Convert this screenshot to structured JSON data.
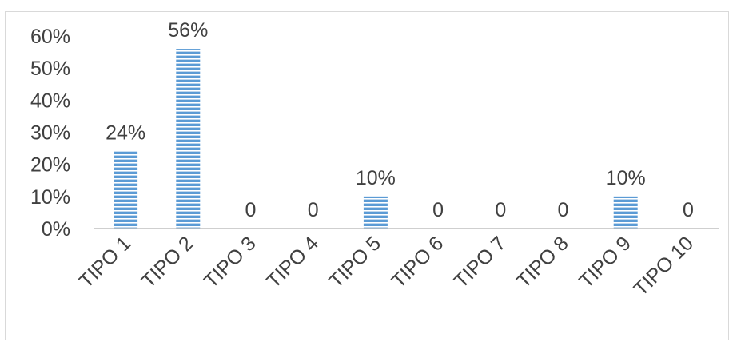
{
  "chart_data": {
    "type": "bar",
    "categories": [
      "TIPO 1",
      "TIPO 2",
      "TIPO 3",
      "TIPO 4",
      "TIPO 5",
      "TIPO 6",
      "TIPO 7",
      "TIPO 8",
      "TIPO 9",
      "TIPO 10"
    ],
    "values": [
      0.24,
      0.56,
      0,
      0,
      0.1,
      0,
      0,
      0,
      0.1,
      0
    ],
    "data_labels": [
      "24%",
      "56%",
      "0",
      "0",
      "10%",
      "0",
      "0",
      "0",
      "10%",
      "0"
    ],
    "y_ticks": [
      "0%",
      "10%",
      "20%",
      "30%",
      "40%",
      "50%",
      "60%"
    ],
    "ylim": [
      0,
      0.6
    ],
    "grid": false,
    "title": "",
    "xlabel": "",
    "ylabel": "",
    "colors": {
      "bar_fill": "#5b9bd5",
      "bar_stripe": "#ffffff",
      "axis": "#bfbfbf",
      "text": "#404040"
    }
  }
}
